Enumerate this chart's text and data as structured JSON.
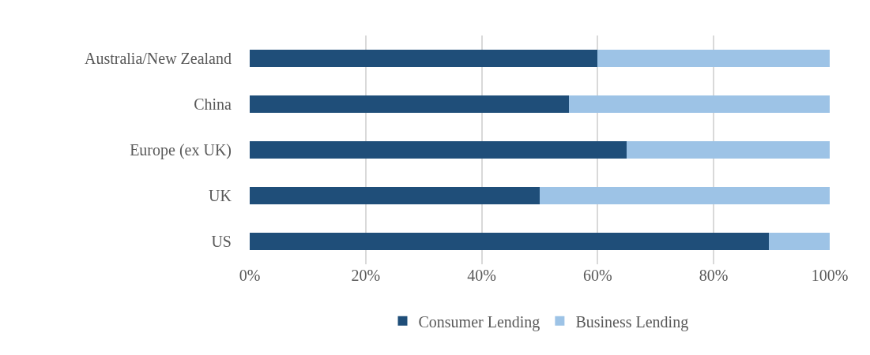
{
  "chart_data": {
    "type": "bar",
    "orientation": "horizontal",
    "stacked": true,
    "categories": [
      "Australia/New Zealand",
      "China",
      "Europe (ex UK)",
      "UK",
      "US"
    ],
    "series": [
      {
        "name": "Consumer Lending",
        "color": "#1f4e79",
        "values": [
          60,
          55,
          65,
          50,
          89.5
        ]
      },
      {
        "name": "Business Lending",
        "color": "#9dc3e6",
        "values": [
          40,
          45,
          35,
          50,
          10.5
        ]
      }
    ],
    "xlim": [
      0,
      100
    ],
    "xticks": [
      {
        "value": 0,
        "label": "0%"
      },
      {
        "value": 20,
        "label": "20%"
      },
      {
        "value": 40,
        "label": "40%"
      },
      {
        "value": 60,
        "label": "60%"
      },
      {
        "value": 80,
        "label": "80%"
      },
      {
        "value": 100,
        "label": "100%"
      }
    ],
    "grid": "x",
    "legend": "bottom"
  }
}
